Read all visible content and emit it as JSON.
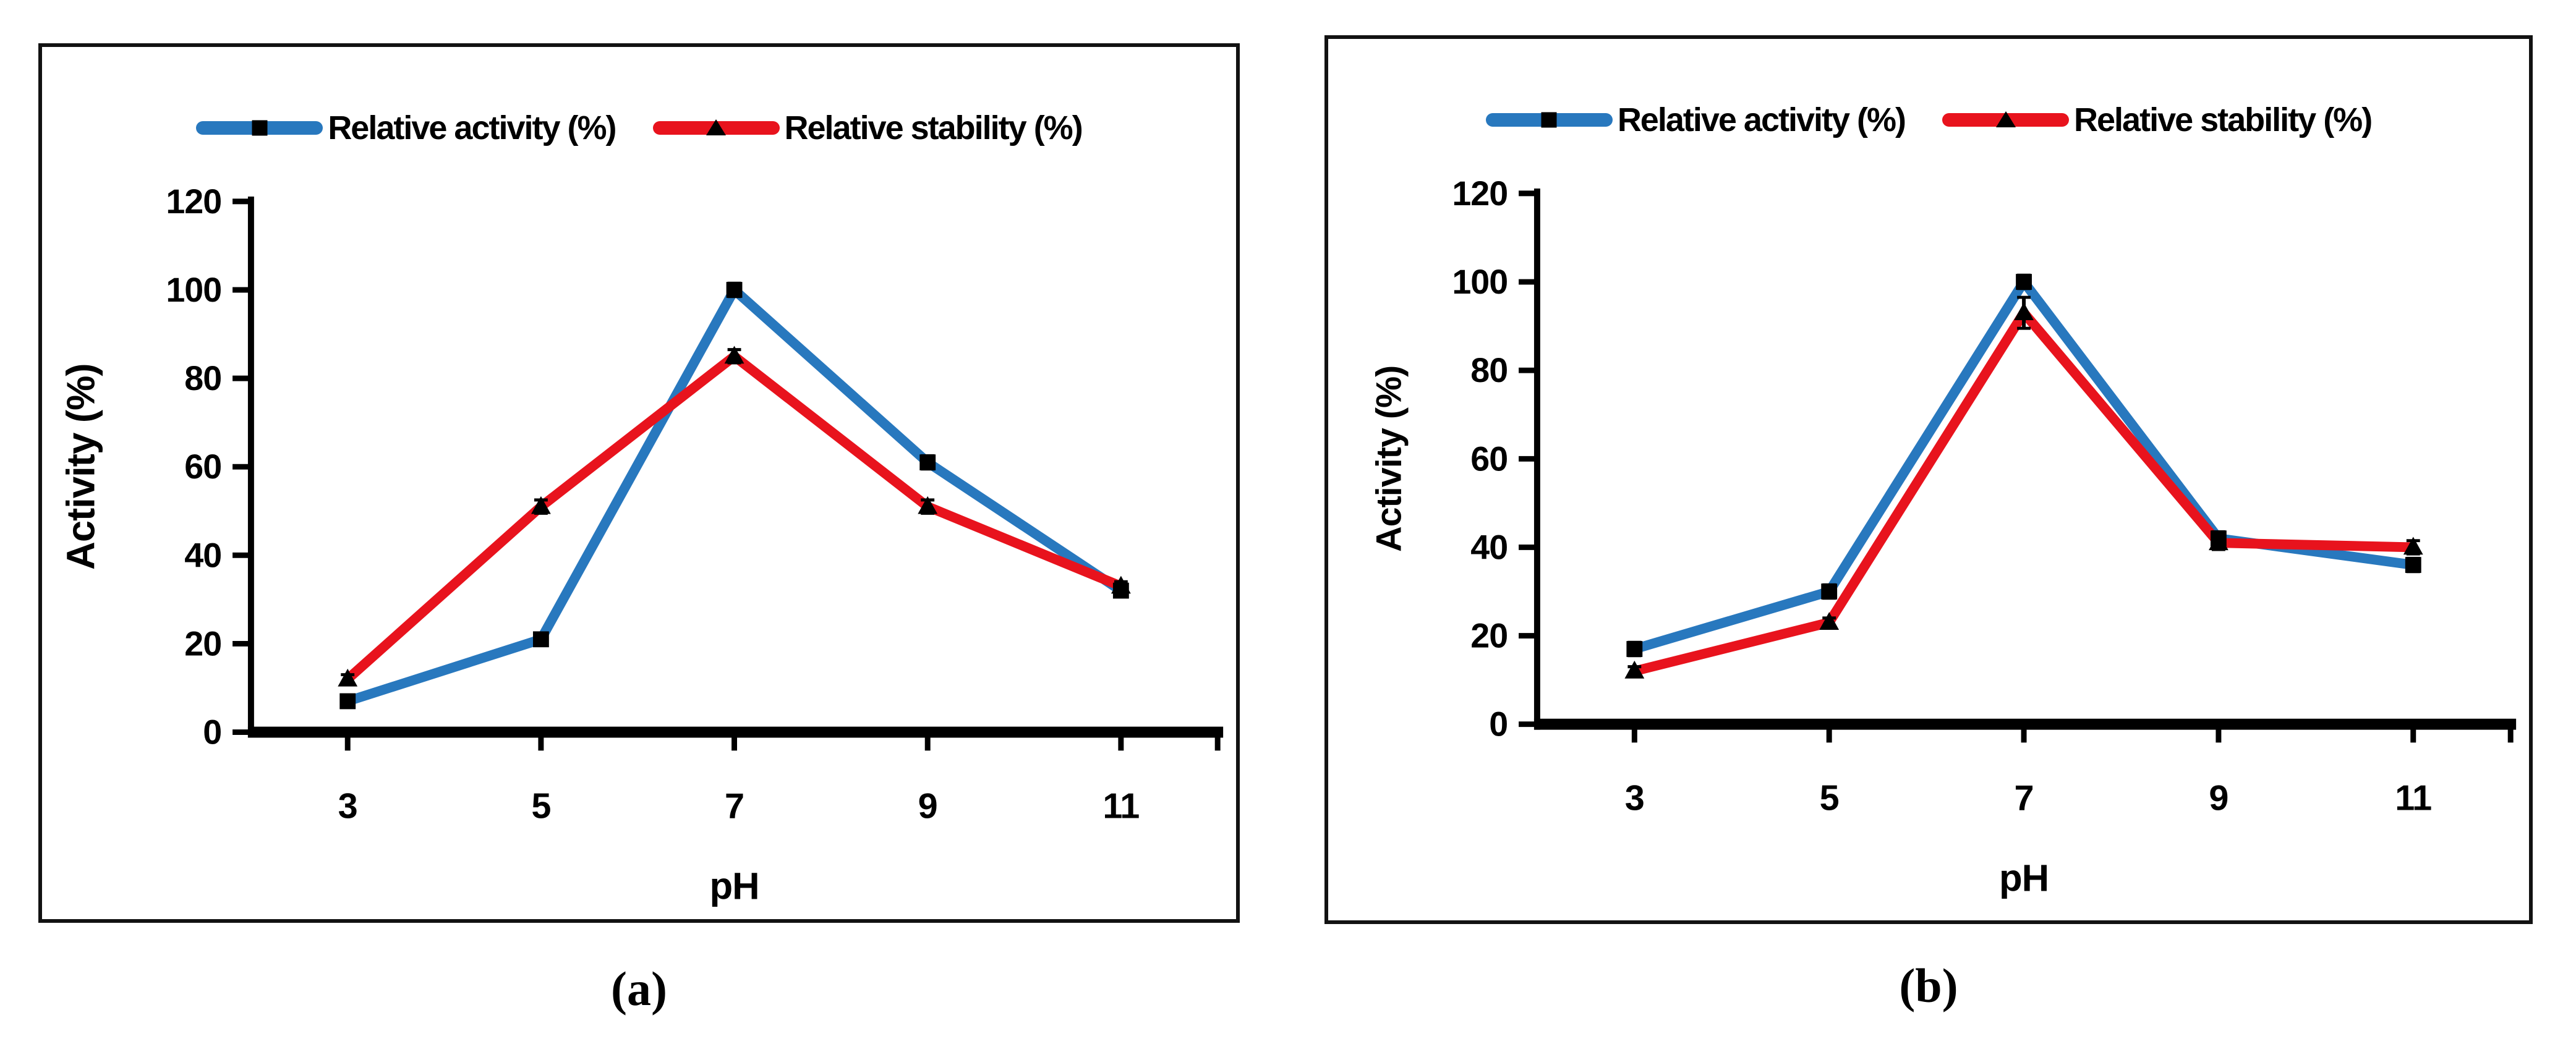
{
  "figure": {
    "caption_a": "(a)",
    "caption_b": "(b)"
  },
  "colors": {
    "activity_line": "#2878BE",
    "stability_line": "#E8131D",
    "marker": "#000000",
    "axis": "#000000",
    "panel_border": "#121212",
    "background": "#FFFFFF"
  },
  "chart_data": [
    {
      "type": "line",
      "panel": "a",
      "title": "",
      "xlabel": "pH",
      "ylabel": "Activity (%)",
      "categories": [
        3,
        5,
        7,
        9,
        11
      ],
      "ylim": [
        0,
        120
      ],
      "yticks": [
        0,
        20,
        40,
        60,
        80,
        100,
        120
      ],
      "grid": false,
      "legend_position": "top",
      "series": [
        {
          "name": "Relative activity (%)",
          "color": "#2878BE",
          "marker": "square",
          "values": [
            7,
            21,
            100,
            61,
            32
          ],
          "errors": [
            1,
            1.2,
            1.5,
            1.5,
            1
          ]
        },
        {
          "name": "Relative stability (%)",
          "color": "#E8131D",
          "marker": "triangle",
          "values": [
            12,
            51,
            85,
            51,
            33
          ],
          "errors": [
            1,
            1.5,
            1.5,
            1.5,
            1
          ]
        }
      ]
    },
    {
      "type": "line",
      "panel": "b",
      "title": "",
      "xlabel": "pH",
      "ylabel": "Activity (%)",
      "categories": [
        3,
        5,
        7,
        9,
        11
      ],
      "ylim": [
        0,
        120
      ],
      "yticks": [
        0,
        20,
        40,
        60,
        80,
        100,
        120
      ],
      "grid": false,
      "legend_position": "top",
      "series": [
        {
          "name": "Relative activity (%)",
          "color": "#2878BE",
          "marker": "square",
          "values": [
            17,
            30,
            100,
            42,
            36
          ],
          "errors": [
            1.5,
            1.5,
            1.5,
            1.5,
            1.5
          ]
        },
        {
          "name": "Relative stability (%)",
          "color": "#E8131D",
          "marker": "triangle",
          "values": [
            12,
            23,
            93,
            41,
            40
          ],
          "errors": [
            1,
            1,
            3.5,
            1.5,
            1.5
          ]
        }
      ]
    }
  ]
}
